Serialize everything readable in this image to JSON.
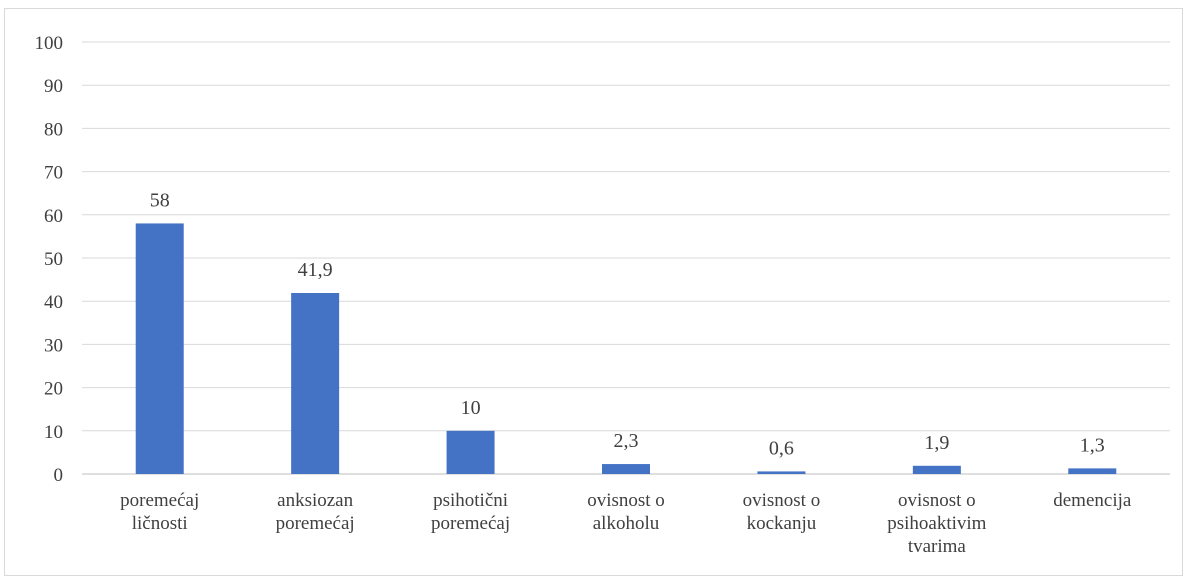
{
  "chart_data": {
    "type": "bar",
    "title": "",
    "xlabel": "",
    "ylabel": "",
    "ylim": [
      0,
      100
    ],
    "yticks": [
      0,
      10,
      20,
      30,
      40,
      50,
      60,
      70,
      80,
      90,
      100
    ],
    "grid": true,
    "legend": "none",
    "bar_color": "#4472c4",
    "categories": [
      [
        "poremećaj",
        "ličnosti"
      ],
      [
        "anksiozan",
        "poremećaj"
      ],
      [
        "psihotični",
        "poremećaj"
      ],
      [
        "ovisnost o",
        "alkoholu"
      ],
      [
        "ovisnost o",
        "kockanju"
      ],
      [
        "ovisnost o",
        "psihoaktivim",
        "tvarima"
      ],
      [
        "demencija"
      ]
    ],
    "values": [
      58,
      41.9,
      10,
      2.3,
      0.6,
      1.9,
      1.3
    ],
    "data_labels": [
      "58",
      "41,9",
      "10",
      "2,3",
      "0,6",
      "1,9",
      "1,3"
    ]
  }
}
